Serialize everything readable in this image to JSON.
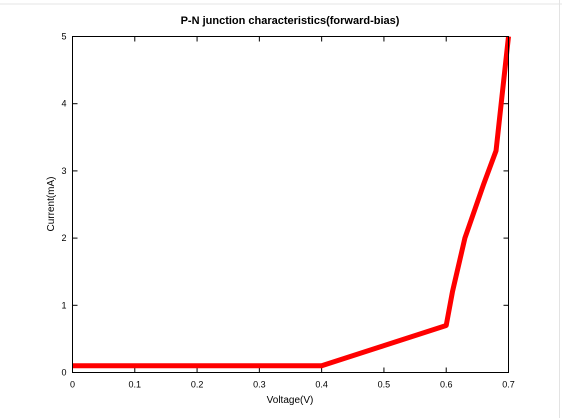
{
  "chart_data": {
    "type": "line",
    "title": "P-N junction characteristics(forward-bias)",
    "xlabel": "Voltage(V)",
    "ylabel": "Current(mA)",
    "xlim": [
      0,
      0.7
    ],
    "ylim": [
      0,
      5
    ],
    "x_ticks": [
      0,
      0.1,
      0.2,
      0.3,
      0.4,
      0.5,
      0.6,
      0.7
    ],
    "x_tick_labels": [
      "0",
      "0.1",
      "0.2",
      "0.3",
      "0.4",
      "0.5",
      "0.6",
      "0.7"
    ],
    "y_ticks": [
      0,
      1,
      2,
      3,
      4,
      5
    ],
    "y_tick_labels": [
      "0",
      "1",
      "2",
      "3",
      "4",
      "5"
    ],
    "grid": false,
    "legend": "none",
    "series": [
      {
        "color": "#ff0000",
        "x": [
          0,
          0.1,
          0.2,
          0.3,
          0.4,
          0.5,
          0.6,
          0.61,
          0.63,
          0.66,
          0.68,
          0.7
        ],
        "y": [
          0.1,
          0.1,
          0.1,
          0.1,
          0.1,
          0.4,
          0.7,
          1.2,
          2.0,
          2.8,
          3.3,
          5.0
        ]
      }
    ]
  }
}
